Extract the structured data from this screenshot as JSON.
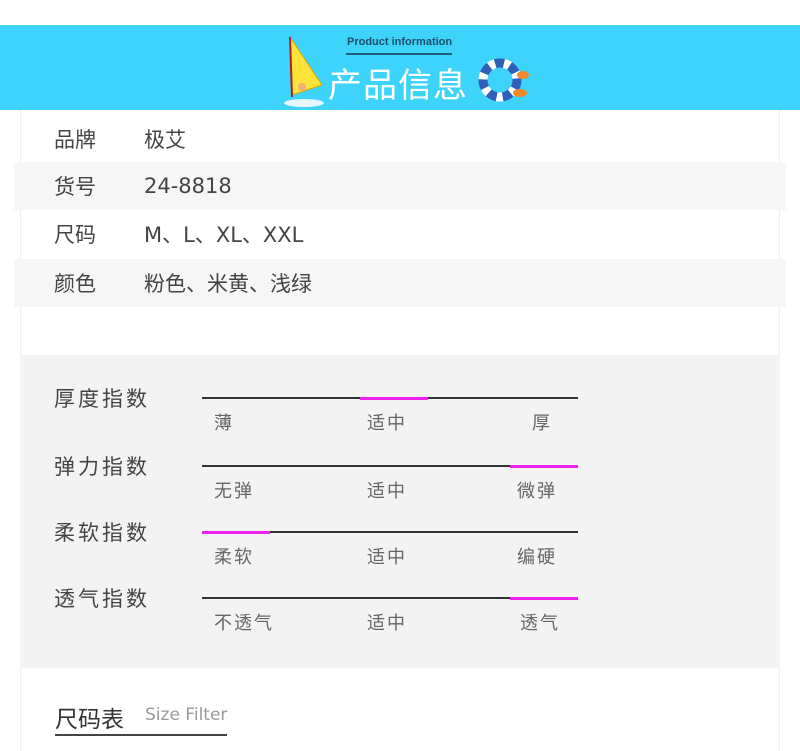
{
  "banner": {
    "subtitle": "Product information",
    "title": "产品信息"
  },
  "info_rows": [
    {
      "key": "品牌",
      "value": "极艾"
    },
    {
      "key": "货号",
      "value": "24-8818"
    },
    {
      "key": "尺码",
      "value": "M、L、XL、XXL"
    },
    {
      "key": "颜色",
      "value": "粉色、米黄、浅绿"
    }
  ],
  "indices": [
    {
      "label": "厚度指数",
      "options": [
        "薄",
        "适中",
        "厚"
      ],
      "selected": 1
    },
    {
      "label": "弹力指数",
      "options": [
        "无弹",
        "适中",
        "微弹"
      ],
      "selected": 2
    },
    {
      "label": "柔软指数",
      "options": [
        "柔软",
        "适中",
        "编硬"
      ],
      "selected": 0
    },
    {
      "label": "透气指数",
      "options": [
        "不透气",
        "适中",
        "透气"
      ],
      "selected": 2
    }
  ],
  "size_table": {
    "title": "尺码表",
    "subtitle": "Size Filter"
  },
  "colors": {
    "banner": "#3dd3fb",
    "highlight": "#ee22ee"
  }
}
